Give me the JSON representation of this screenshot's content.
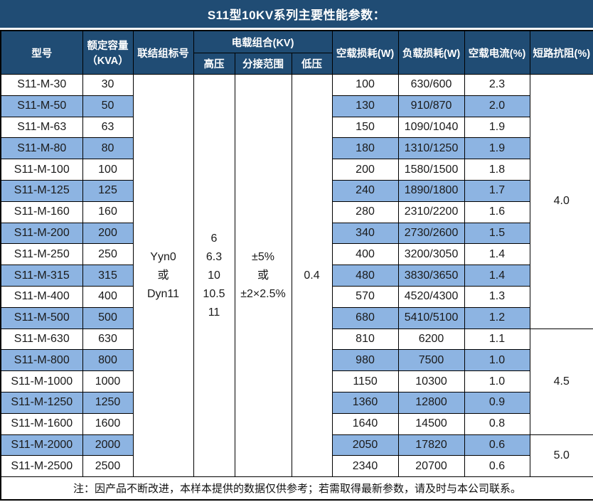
{
  "title": "S11型10KV系列主要性能参数：",
  "colors": {
    "header_bg": "#204C74",
    "stripe_bg": "#8DB4E2",
    "border": "#000000",
    "header_text": "#FFFFFF"
  },
  "table": {
    "headers": {
      "model": "型号",
      "capacity": "额定容量\n（KVA）",
      "connection": "联结组标号",
      "voltage_group": "电载组合(KV)",
      "hv": "高压",
      "tap_range": "分接范围",
      "lv": "低压",
      "no_load_loss": "空载损耗(W)",
      "load_loss": "负载损耗(W)",
      "no_load_current": "空载电流(%)",
      "impedance": "短路抗阻(%)"
    },
    "merged": {
      "connection_value": "Yyn0\n或\nDyn11",
      "hv_value": "6\n6.3\n10\n10.5\n11",
      "tap_range_value": "±5%\n或\n±2×2.5%",
      "lv_value": "0.4"
    },
    "impedance_groups": [
      {
        "value": "4.0",
        "span": 12
      },
      {
        "value": "4.5",
        "span": 5
      },
      {
        "value": "5.0",
        "span": 2
      }
    ],
    "rows": [
      {
        "model": "S11-M-30",
        "capacity": "30",
        "no_load_loss": "100",
        "load_loss": "630/600",
        "no_load_current": "2.3"
      },
      {
        "model": "S11-M-50",
        "capacity": "50",
        "no_load_loss": "130",
        "load_loss": "910/870",
        "no_load_current": "2.0"
      },
      {
        "model": "S11-M-63",
        "capacity": "63",
        "no_load_loss": "150",
        "load_loss": "1090/1040",
        "no_load_current": "1.9"
      },
      {
        "model": "S11-M-80",
        "capacity": "80",
        "no_load_loss": "180",
        "load_loss": "1310/1250",
        "no_load_current": "1.9"
      },
      {
        "model": "S11-M-100",
        "capacity": "100",
        "no_load_loss": "200",
        "load_loss": "1580/1500",
        "no_load_current": "1.8"
      },
      {
        "model": "S11-M-125",
        "capacity": "125",
        "no_load_loss": "240",
        "load_loss": "1890/1800",
        "no_load_current": "1.7"
      },
      {
        "model": "S11-M-160",
        "capacity": "160",
        "no_load_loss": "280",
        "load_loss": "2310/2200",
        "no_load_current": "1.6"
      },
      {
        "model": "S11-M-200",
        "capacity": "200",
        "no_load_loss": "340",
        "load_loss": "2730/2600",
        "no_load_current": "1.5"
      },
      {
        "model": "S11-M-250",
        "capacity": "250",
        "no_load_loss": "400",
        "load_loss": "3200/3050",
        "no_load_current": "1.4"
      },
      {
        "model": "S11-M-315",
        "capacity": "315",
        "no_load_loss": "480",
        "load_loss": "3830/3650",
        "no_load_current": "1.4"
      },
      {
        "model": "S11-M-400",
        "capacity": "400",
        "no_load_loss": "570",
        "load_loss": "4520/4300",
        "no_load_current": "1.3"
      },
      {
        "model": "S11-M-500",
        "capacity": "500",
        "no_load_loss": "680",
        "load_loss": "5410/5100",
        "no_load_current": "1.2"
      },
      {
        "model": "S11-M-630",
        "capacity": "630",
        "no_load_loss": "810",
        "load_loss": "6200",
        "no_load_current": "1.1"
      },
      {
        "model": "S11-M-800",
        "capacity": "800",
        "no_load_loss": "980",
        "load_loss": "7500",
        "no_load_current": "1.0"
      },
      {
        "model": "S11-M-1000",
        "capacity": "1000",
        "no_load_loss": "1150",
        "load_loss": "10300",
        "no_load_current": "1.0"
      },
      {
        "model": "S11-M-1250",
        "capacity": "1250",
        "no_load_loss": "1360",
        "load_loss": "12800",
        "no_load_current": "0.9"
      },
      {
        "model": "S11-M-1600",
        "capacity": "1600",
        "no_load_loss": "1640",
        "load_loss": "14500",
        "no_load_current": "0.8"
      },
      {
        "model": "S11-M-2000",
        "capacity": "2000",
        "no_load_loss": "2050",
        "load_loss": "17820",
        "no_load_current": "0.6"
      },
      {
        "model": "S11-M-2500",
        "capacity": "2500",
        "no_load_loss": "2340",
        "load_loss": "20700",
        "no_load_current": "0.6"
      }
    ]
  },
  "note": "注：因产品不断改进，本样本提供的数据仅供参考；若需取得最新参数，请及时与本公司联系。"
}
